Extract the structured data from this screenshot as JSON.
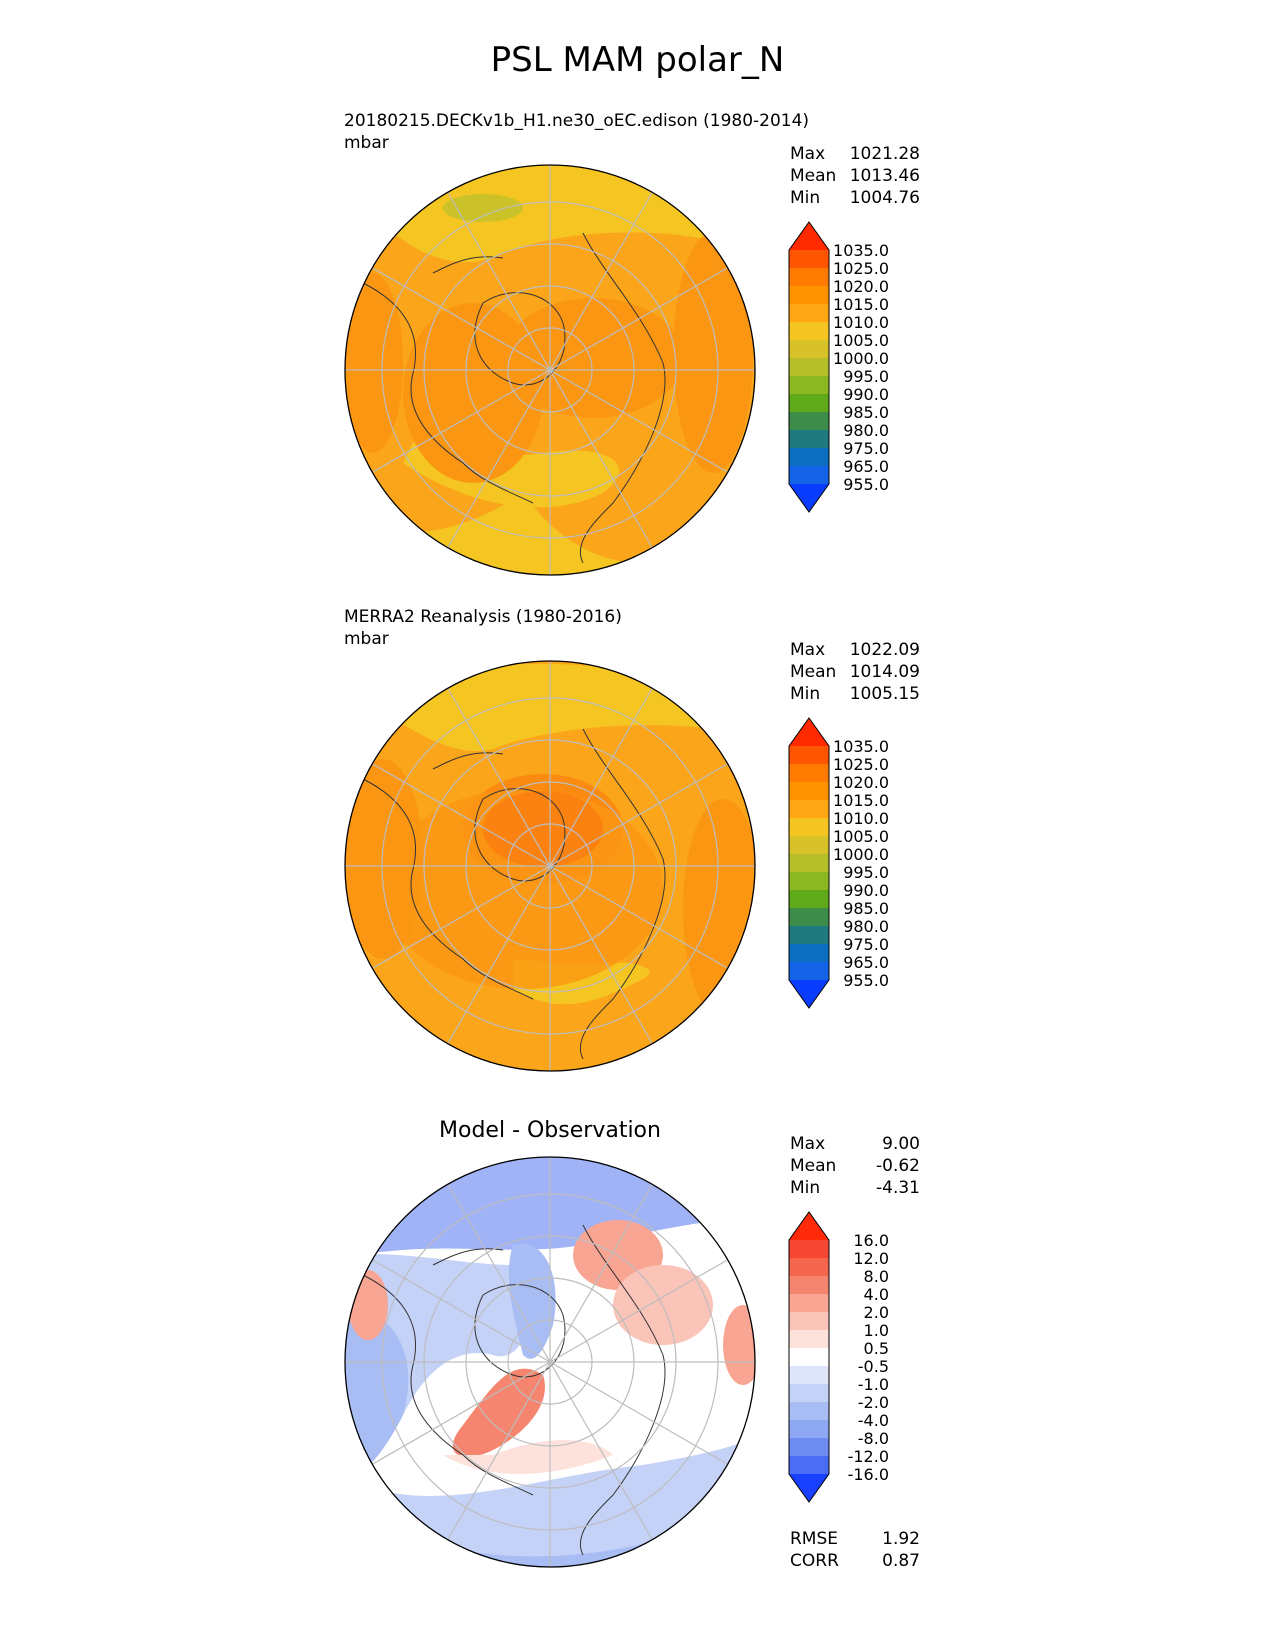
{
  "title": "PSL MAM polar_N",
  "panels": {
    "test": {
      "name": "20180215.DECKv1b_H1.ne30_oEC.edison (1980-2014)",
      "units": "mbar",
      "stats": [
        {
          "label": "Max",
          "value": "1021.28"
        },
        {
          "label": "Mean",
          "value": "1013.46"
        },
        {
          "label": "Min",
          "value": "1004.76"
        }
      ]
    },
    "reference": {
      "name": "MERRA2 Reanalysis (1980-2016)",
      "units": "mbar",
      "stats": [
        {
          "label": "Max",
          "value": "1022.09"
        },
        {
          "label": "Mean",
          "value": "1014.09"
        },
        {
          "label": "Min",
          "value": "1005.15"
        }
      ]
    },
    "diff": {
      "name": "Model - Observation",
      "stats": [
        {
          "label": "Max",
          "value": "9.00"
        },
        {
          "label": "Mean",
          "value": "-0.62"
        },
        {
          "label": "Min",
          "value": "-4.31"
        }
      ],
      "metrics": [
        {
          "label": "RMSE",
          "value": "1.92"
        },
        {
          "label": "CORR",
          "value": "0.87"
        }
      ]
    }
  },
  "chart_data": [
    {
      "type": "heatmap",
      "projection": "north-polar-stereographic",
      "title": "20180215.DECKv1b_H1.ne30_oEC.edison (1980-2014)",
      "units": "mbar",
      "colorbar": {
        "tick_labels": [
          "1035.0",
          "1025.0",
          "1020.0",
          "1015.0",
          "1010.0",
          "1005.0",
          "1000.0",
          "995.0",
          "990.0",
          "985.0",
          "980.0",
          "975.0",
          "965.0",
          "955.0"
        ],
        "colors": [
          "#ff2a00",
          "#ff5500",
          "#ff7a00",
          "#ff9200",
          "#ffa615",
          "#f4c521",
          "#d8c22a",
          "#b5bf2a",
          "#8db822",
          "#5eaa1b",
          "#3d8c4a",
          "#1f7a7f",
          "#0d6ec1",
          "#1463e6",
          "#0a3cff"
        ],
        "extend": "both"
      },
      "map_fill": "#f9a11b",
      "max": 1021.28,
      "mean": 1013.46,
      "min": 1004.76
    },
    {
      "type": "heatmap",
      "projection": "north-polar-stereographic",
      "title": "MERRA2 Reanalysis (1980-2016)",
      "units": "mbar",
      "colorbar": {
        "tick_labels": [
          "1035.0",
          "1025.0",
          "1020.0",
          "1015.0",
          "1010.0",
          "1005.0",
          "1000.0",
          "995.0",
          "990.0",
          "985.0",
          "980.0",
          "975.0",
          "965.0",
          "955.0"
        ],
        "colors": [
          "#ff2a00",
          "#ff5500",
          "#ff7a00",
          "#ff9200",
          "#ffa615",
          "#f4c521",
          "#d8c22a",
          "#b5bf2a",
          "#8db822",
          "#5eaa1b",
          "#3d8c4a",
          "#1f7a7f",
          "#0d6ec1",
          "#1463e6",
          "#0a3cff"
        ],
        "extend": "both"
      },
      "map_fill": "#f99a1a",
      "max": 1022.09,
      "mean": 1014.09,
      "min": 1005.15
    },
    {
      "type": "heatmap",
      "projection": "north-polar-stereographic",
      "title": "Model - Observation",
      "colorbar": {
        "tick_labels": [
          "16.0",
          "12.0",
          "8.0",
          "4.0",
          "2.0",
          "1.0",
          "0.5",
          "-0.5",
          "-1.0",
          "-2.0",
          "-4.0",
          "-8.0",
          "-12.0",
          "-16.0"
        ],
        "colors": [
          "#ff2a0a",
          "#f74632",
          "#f4664e",
          "#f5856e",
          "#f8a594",
          "#fbc4b8",
          "#fde2dc",
          "#ffffff",
          "#dfe6fb",
          "#c5d2f8",
          "#a9bdf5",
          "#8ea8f3",
          "#6f8cf3",
          "#4b6df5",
          "#1a40ff"
        ],
        "extend": "both"
      },
      "max": 9.0,
      "mean": -0.62,
      "min": -4.31,
      "rmse": 1.92,
      "corr": 0.87
    }
  ]
}
